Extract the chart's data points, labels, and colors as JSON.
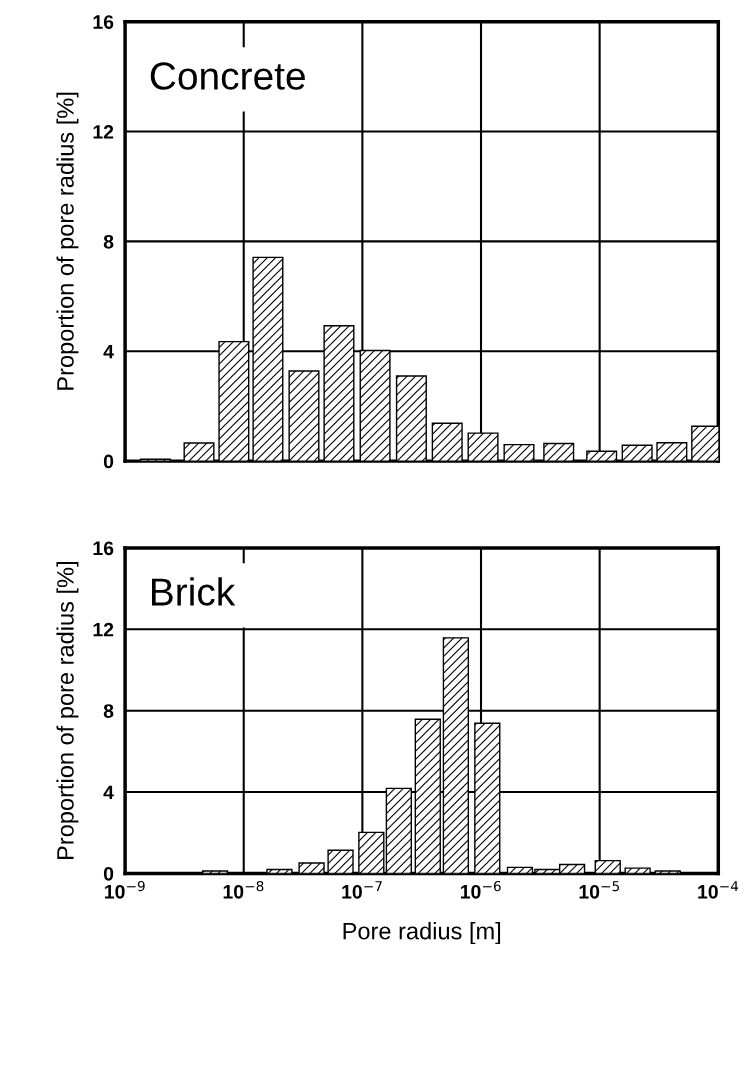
{
  "chart_data": [
    {
      "type": "bar",
      "title": "Concrete",
      "ylabel": "Proportion of pore radius [%]",
      "x": [
        1.8e-09,
        4.2e-09,
        8.26e-09,
        1.6e-08,
        3.22e-08,
        6.35e-08,
        1.28e-07,
        2.59e-07,
        5.19e-07,
        1.04e-06,
        2.09e-06,
        4.52e-06,
        1.04e-05,
        2.07e-05,
        4.06e-05,
        7.98e-05
      ],
      "values": [
        0.07,
        0.66,
        4.35,
        7.42,
        3.28,
        4.93,
        4.03,
        3.1,
        1.38,
        1.02,
        0.6,
        0.64,
        0.36,
        0.58,
        0.67,
        1.27
      ],
      "color": "#000000",
      "log": "x",
      "grid": true,
      "tick_labels": "y",
      "xlim": [
        1e-09,
        0.0001
      ],
      "xticks": [
        {
          "value": 1e-09,
          "label": null
        },
        {
          "value": 1e-08,
          "label": null
        },
        {
          "value": 1e-07,
          "label": null
        },
        {
          "value": 1e-06,
          "label": null
        },
        {
          "value": 1e-05,
          "label": null
        },
        {
          "value": 0.0001,
          "label": null
        }
      ],
      "ylim": [
        0,
        16
      ],
      "yticks": [
        0,
        4,
        8,
        12,
        16
      ]
    },
    {
      "type": "bar",
      "title": "Brick",
      "ylabel": "Proportion of pore radius [%]",
      "xlabel": "Pore radius [m]",
      "x": [
        5.73e-09,
        2e-08,
        3.73e-08,
        6.55e-08,
        1.19e-07,
        2.03e-07,
        3.56e-07,
        6.14e-07,
        1.13e-06,
        2.13e-06,
        3.63e-06,
        5.86e-06,
        1.17e-05,
        2.09e-05,
        3.75e-05
      ],
      "values": [
        0.12,
        0.19,
        0.51,
        1.14,
        2.02,
        4.18,
        7.58,
        11.58,
        7.38,
        0.3,
        0.19,
        0.44,
        0.63,
        0.26,
        0.12
      ],
      "color": "#000000",
      "log": "x",
      "grid": true,
      "xlim": [
        1e-09,
        0.0001
      ],
      "xticks": [
        {
          "value": 1e-09,
          "label": "10$^{−9}$"
        },
        {
          "value": 1e-08,
          "label": "10$^{−8}$"
        },
        {
          "value": 1e-07,
          "label": "10$^{−7}$"
        },
        {
          "value": 1e-06,
          "label": "10$^{−6}$"
        },
        {
          "value": 1e-05,
          "label": "10$^{−5}$"
        },
        {
          "value": 0.0001,
          "label": "10$^{−4}$"
        }
      ],
      "ylim": [
        0,
        16
      ],
      "yticks": [
        0,
        4,
        8,
        12,
        16
      ]
    }
  ]
}
